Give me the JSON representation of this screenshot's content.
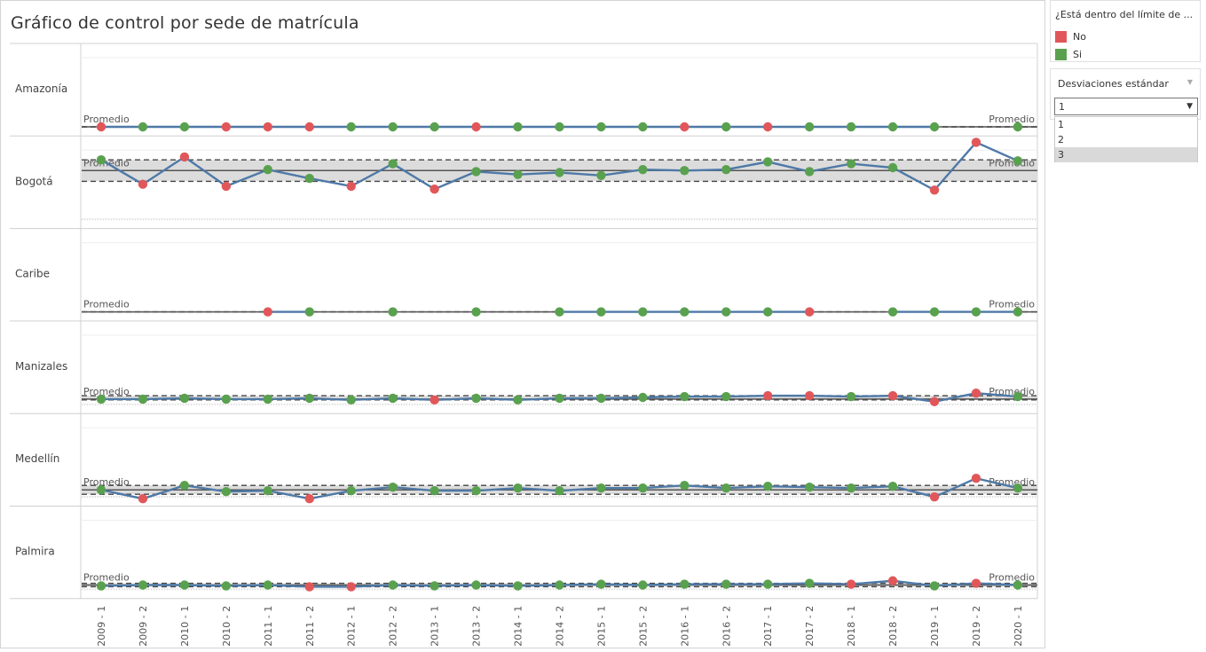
{
  "title": "Gráfico de control por sede de matrícula",
  "legend": {
    "title": "¿Está dentro del límite de ...",
    "items": [
      {
        "label": "No",
        "color": "#e15759"
      },
      {
        "label": "Si",
        "color": "#59a14f"
      }
    ]
  },
  "filter": {
    "title": "Desviaciones estándar",
    "value": "1",
    "options": [
      "1",
      "2",
      "3"
    ],
    "highlighted_option": "3"
  },
  "colors": {
    "line": "#4e79a7",
    "no": "#e15759",
    "si": "#59a14f",
    "band": "#dcdcdc"
  },
  "chart_data": {
    "type": "line",
    "reference_label": "Promedio",
    "categories": [
      "2009 - 1",
      "2009 - 2",
      "2010 - 1",
      "2010 - 2",
      "2011 - 1",
      "2011 - 2",
      "2012 - 1",
      "2012 - 2",
      "2013 - 1",
      "2013 - 2",
      "2014 - 1",
      "2014 - 2",
      "2015 - 1",
      "2015 - 2",
      "2016 - 1",
      "2016 - 2",
      "2017 - 1",
      "2017 - 2",
      "2018 - 1",
      "2018 - 2",
      "2019 - 1",
      "2019 - 2",
      "2020 - 1"
    ],
    "panels": [
      {
        "name": "Amazonía",
        "avg": 0,
        "band": [
          0,
          0
        ],
        "values": [
          0,
          0,
          0,
          0,
          0,
          0,
          0,
          0,
          0,
          0,
          0,
          0,
          0,
          0,
          0,
          0,
          0,
          0,
          0,
          0,
          0,
          null,
          0
        ],
        "within": [
          "No",
          "Si",
          "Si",
          "No",
          "No",
          "No",
          "Si",
          "Si",
          "Si",
          "No",
          "Si",
          "Si",
          "Si",
          "Si",
          "No",
          "Si",
          "No",
          "Si",
          "Si",
          "Si",
          "Si",
          null,
          "Si"
        ]
      },
      {
        "name": "Bogotá",
        "avg": 0,
        "band": [
          -11,
          11
        ],
        "values": [
          11,
          -14,
          14,
          -16,
          1,
          -8,
          -16,
          7,
          -19,
          -1,
          -4,
          -2,
          -5,
          1,
          0,
          1,
          9,
          -1,
          7,
          3,
          -20,
          29,
          10
        ],
        "within": [
          "Si",
          "No",
          "No",
          "No",
          "Si",
          "Si",
          "No",
          "Si",
          "No",
          "Si",
          "Si",
          "Si",
          "Si",
          "Si",
          "Si",
          "Si",
          "Si",
          "Si",
          "Si",
          "Si",
          "No",
          "No",
          "Si"
        ]
      },
      {
        "name": "Caribe",
        "avg": 0,
        "band": [
          0,
          0
        ],
        "values": [
          null,
          null,
          null,
          null,
          0,
          0,
          null,
          0,
          null,
          0,
          null,
          0,
          0,
          0,
          0,
          0,
          0,
          0,
          null,
          0,
          0,
          0,
          0
        ],
        "within": [
          null,
          null,
          null,
          null,
          "No",
          "Si",
          null,
          "Si",
          null,
          "Si",
          null,
          "Si",
          "Si",
          "Si",
          "Si",
          "Si",
          "Si",
          "No",
          null,
          "Si",
          "Si",
          "Si",
          "Si"
        ]
      },
      {
        "name": "Manizales",
        "avg": 0,
        "band": [
          -1,
          4
        ],
        "values": [
          0,
          0,
          1,
          0,
          0,
          1,
          -1,
          1,
          -1,
          1,
          -1,
          1,
          1,
          2,
          3,
          3,
          4,
          4,
          3,
          4,
          -3,
          7,
          3
        ],
        "within": [
          "Si",
          "Si",
          "Si",
          "Si",
          "Si",
          "Si",
          "Si",
          "Si",
          "No",
          "Si",
          "Si",
          "Si",
          "Si",
          "Si",
          "Si",
          "Si",
          "No",
          "No",
          "Si",
          "No",
          "No",
          "No",
          "Si"
        ]
      },
      {
        "name": "Medellín",
        "avg": 0,
        "band": [
          -5,
          5
        ],
        "values": [
          0,
          -10,
          5,
          -2,
          -1,
          -10,
          -1,
          3,
          -1,
          -1,
          2,
          -1,
          2,
          2,
          5,
          2,
          4,
          3,
          2,
          4,
          -8,
          13,
          2
        ],
        "within": [
          "Si",
          "No",
          "Si",
          "Si",
          "Si",
          "No",
          "Si",
          "Si",
          "Si",
          "Si",
          "Si",
          "Si",
          "Si",
          "Si",
          "Si",
          "Si",
          "Si",
          "Si",
          "Si",
          "Si",
          "No",
          "No",
          "Si"
        ]
      },
      {
        "name": "Palmira",
        "avg": 0,
        "band": [
          -2,
          2
        ],
        "values": [
          -1,
          0,
          0,
          -1,
          0,
          -2,
          -2,
          0,
          -1,
          0,
          -1,
          0,
          1,
          0,
          1,
          1,
          1,
          2,
          1,
          5,
          -1,
          2,
          0
        ],
        "within": [
          "Si",
          "Si",
          "Si",
          "Si",
          "Si",
          "No",
          "No",
          "Si",
          "Si",
          "Si",
          "Si",
          "Si",
          "Si",
          "Si",
          "Si",
          "Si",
          "Si",
          "Si",
          "No",
          "No",
          "Si",
          "No",
          "Si"
        ]
      }
    ]
  }
}
